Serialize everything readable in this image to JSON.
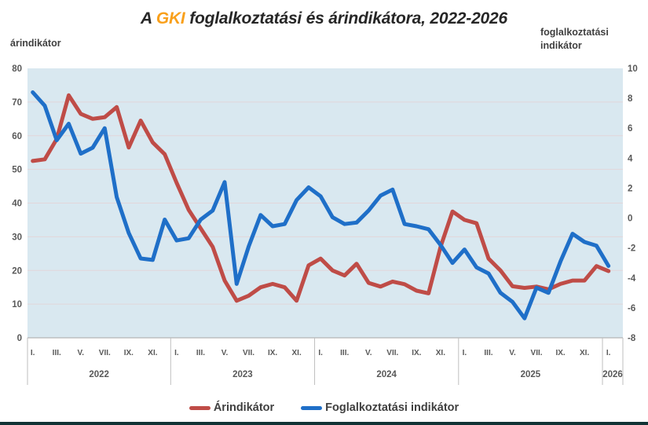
{
  "title": {
    "prefix": "A ",
    "brand": "GKI",
    "rest": " foglalkoztatási és árindikátora, 2022-2026"
  },
  "axes": {
    "left_title": "árindikátor",
    "right_title": "foglalkoztatási indikátor"
  },
  "legend": {
    "items": [
      {
        "label": "Árindikátor",
        "color": "#BF4C47"
      },
      {
        "label": "Foglalkoztatási indikátor",
        "color": "#1F6FC8"
      }
    ]
  },
  "colors": {
    "plot_background": "#D9E8F0",
    "gridline": "#E2D6DA",
    "axis_line": "#A6A6A6",
    "divider": "#BFBFBF",
    "tick_text": "#595959",
    "title_text": "#262626",
    "brand_orange": "#F9A01B",
    "series_red": "#BF4C47",
    "series_blue": "#1F6FC8"
  },
  "chart_data": {
    "type": "line",
    "title": "A GKI foglalkoztatási és árindikátora, 2022-2026",
    "x_unit": "month, bimonthly ticks",
    "left_axis": {
      "label": "árindikátor",
      "min": 0,
      "max": 80,
      "step": 10
    },
    "right_axis": {
      "label": "foglalkoztatási indikátor",
      "min": -8,
      "max": 10,
      "step": 2
    },
    "x_axis": {
      "tick_labels": [
        "I.",
        "III.",
        "V.",
        "VII.",
        "IX.",
        "XI."
      ],
      "years": [
        {
          "label": "2022",
          "ticks": 6
        },
        {
          "label": "2023",
          "ticks": 6
        },
        {
          "label": "2024",
          "ticks": 6
        },
        {
          "label": "2025",
          "ticks": 6
        },
        {
          "label": "2026",
          "ticks": 1
        }
      ]
    },
    "grid": "horizontal only",
    "legend_position": "bottom center",
    "series": [
      {
        "name": "Árindikátor",
        "axis": "left",
        "color": "#BF4C47",
        "start": "2022-01",
        "values": [
          52.5,
          53,
          59,
          72,
          66.5,
          65,
          65.5,
          68.5,
          56.5,
          64.5,
          58,
          54.5,
          46,
          38,
          32.5,
          27,
          17,
          11,
          12.5,
          15,
          16,
          15,
          11,
          21.5,
          23.5,
          20,
          18.5,
          22,
          16.3,
          15.2,
          16.7,
          15.9,
          14,
          13.2,
          27,
          37.5,
          35,
          34,
          23.5,
          20,
          15.3,
          14.8,
          15.2,
          14.4,
          16,
          17,
          17,
          21.3,
          19.8
        ]
      },
      {
        "name": "Foglalkoztatási indikátor",
        "axis": "right",
        "color": "#1F6FC8",
        "start": "2022-01",
        "values": [
          8.4,
          7.5,
          5.2,
          6.3,
          4.3,
          4.7,
          6.0,
          1.4,
          -1.0,
          -2.7,
          -2.8,
          -0.1,
          -1.5,
          -1.35,
          -0.1,
          0.5,
          2.4,
          -4.4,
          -1.9,
          0.2,
          -0.55,
          -0.4,
          1.2,
          2.05,
          1.45,
          0.05,
          -0.4,
          -0.3,
          0.5,
          1.5,
          1.9,
          -0.4,
          -0.55,
          -0.75,
          -1.8,
          -3.0,
          -2.1,
          -3.3,
          -3.7,
          -5.0,
          -5.6,
          -6.7,
          -4.65,
          -5.0,
          -2.9,
          -1.05,
          -1.6,
          -1.85,
          -3.2
        ]
      }
    ]
  }
}
